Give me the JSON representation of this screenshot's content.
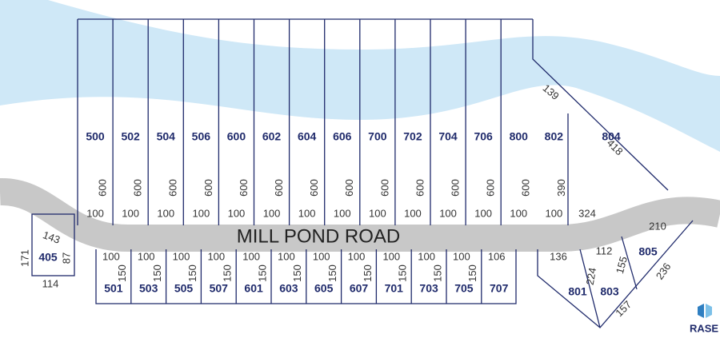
{
  "road": "MILL POND ROAD",
  "logo": "RASE",
  "north_lots": [
    {
      "number": "500",
      "frontage": "100",
      "depth": "600"
    },
    {
      "number": "502",
      "frontage": "100",
      "depth": "600"
    },
    {
      "number": "504",
      "frontage": "100",
      "depth": "600"
    },
    {
      "number": "506",
      "frontage": "100",
      "depth": "600"
    },
    {
      "number": "600",
      "frontage": "100",
      "depth": "600"
    },
    {
      "number": "602",
      "frontage": "100",
      "depth": "600"
    },
    {
      "number": "604",
      "frontage": "100",
      "depth": "600"
    },
    {
      "number": "606",
      "frontage": "100",
      "depth": "600"
    },
    {
      "number": "700",
      "frontage": "100",
      "depth": "600"
    },
    {
      "number": "702",
      "frontage": "100",
      "depth": "600"
    },
    {
      "number": "704",
      "frontage": "100",
      "depth": "600"
    },
    {
      "number": "706",
      "frontage": "100",
      "depth": "600"
    },
    {
      "number": "800",
      "frontage": "100",
      "depth": "600"
    },
    {
      "number": "802",
      "frontage": "100",
      "depth": "390"
    }
  ],
  "lot_802_rear": "139",
  "lot_804": {
    "number": "804",
    "frontage": "324",
    "side": "418"
  },
  "south_lots": [
    {
      "number": "501",
      "frontage": "100",
      "depth": "150"
    },
    {
      "number": "503",
      "frontage": "100",
      "depth": "150"
    },
    {
      "number": "505",
      "frontage": "100",
      "depth": "150"
    },
    {
      "number": "507",
      "frontage": "100",
      "depth": "150"
    },
    {
      "number": "601",
      "frontage": "100",
      "depth": "150"
    },
    {
      "number": "603",
      "frontage": "100",
      "depth": "150"
    },
    {
      "number": "605",
      "frontage": "100",
      "depth": "150"
    },
    {
      "number": "607",
      "frontage": "100",
      "depth": "150"
    },
    {
      "number": "701",
      "frontage": "100",
      "depth": "150"
    },
    {
      "number": "703",
      "frontage": "100",
      "depth": "150"
    },
    {
      "number": "705",
      "frontage": "100",
      "depth": "150"
    },
    {
      "number": "707",
      "frontage": "106"
    }
  ],
  "lot_801": {
    "number": "801",
    "frontage": "136",
    "side": "224"
  },
  "lot_803": {
    "number": "803",
    "frontage": "112",
    "side": "155",
    "rear": "157"
  },
  "lot_805": {
    "number": "805",
    "frontage": "210",
    "side": "236"
  },
  "lot_405": {
    "number": "405",
    "frontage": "143",
    "west": "171",
    "east": "87",
    "rear": "114"
  }
}
